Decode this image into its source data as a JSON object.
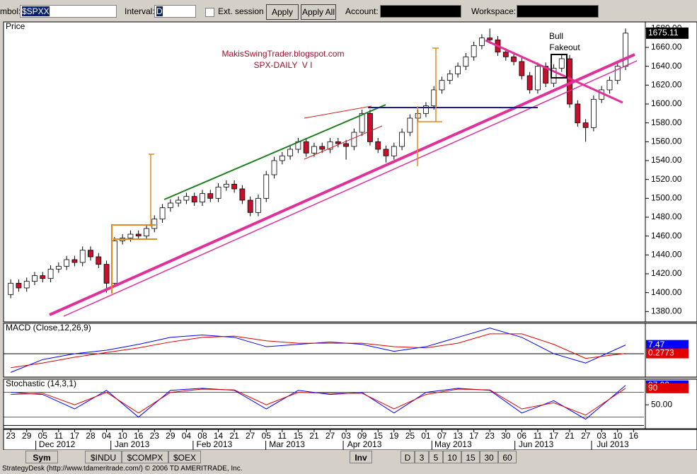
{
  "toolbar": {
    "symbol_label": "mbol:",
    "symbol": "$SPXX",
    "interval_label": "Interval:",
    "interval": "D",
    "ext_session": "Ext. session",
    "apply": "Apply",
    "apply_all": "Apply All",
    "account_label": "Account:",
    "workspace_label": "Workspace:"
  },
  "chart_data": [
    {
      "type": "candlestick",
      "panel_label": "Price",
      "annotations": [
        "MakisSwingTrader.blogspot.com",
        "SPX-DAILY  V I",
        "Bull",
        "Fakeout"
      ],
      "up_color": "#ffffff",
      "down_color": "#c8102e",
      "open": [
        1398,
        1410,
        1405,
        1412,
        1418,
        1415,
        1425,
        1428,
        1435,
        1432,
        1445,
        1438,
        1430,
        1410,
        1455,
        1458,
        1462,
        1460,
        1468,
        1478,
        1490,
        1495,
        1498,
        1502,
        1496,
        1505,
        1500,
        1512,
        1515,
        1510,
        1498,
        1485,
        1500,
        1525,
        1540,
        1545,
        1552,
        1560,
        1548,
        1555,
        1552,
        1560,
        1558,
        1555,
        1570,
        1590,
        1560,
        1552,
        1545,
        1555,
        1570,
        1585,
        1590,
        1598,
        1615,
        1625,
        1632,
        1640,
        1650,
        1662,
        1670,
        1668,
        1655,
        1650,
        1645,
        1630,
        1615,
        1640,
        1622,
        1638,
        1648,
        1600,
        1580,
        1575,
        1605,
        1615,
        1625,
        1640
      ],
      "high": [
        1414,
        1414,
        1416,
        1422,
        1422,
        1429,
        1432,
        1439,
        1439,
        1449,
        1449,
        1442,
        1434,
        1459,
        1462,
        1466,
        1466,
        1472,
        1482,
        1494,
        1499,
        1502,
        1506,
        1506,
        1509,
        1509,
        1516,
        1519,
        1519,
        1514,
        1502,
        1504,
        1529,
        1544,
        1549,
        1556,
        1564,
        1564,
        1559,
        1559,
        1564,
        1564,
        1562,
        1574,
        1594,
        1594,
        1564,
        1556,
        1559,
        1574,
        1589,
        1594,
        1602,
        1619,
        1629,
        1636,
        1644,
        1654,
        1666,
        1674,
        1680,
        1672,
        1659,
        1654,
        1649,
        1634,
        1644,
        1644,
        1642,
        1652,
        1652,
        1604,
        1584,
        1609,
        1619,
        1629,
        1644,
        1680
      ],
      "low": [
        1394,
        1401,
        1401,
        1408,
        1411,
        1411,
        1421,
        1424,
        1428,
        1428,
        1434,
        1426,
        1400,
        1406,
        1451,
        1454,
        1456,
        1456,
        1464,
        1474,
        1486,
        1491,
        1494,
        1492,
        1492,
        1496,
        1496,
        1508,
        1506,
        1494,
        1481,
        1481,
        1496,
        1521,
        1536,
        1541,
        1548,
        1544,
        1544,
        1548,
        1548,
        1554,
        1541,
        1551,
        1566,
        1556,
        1548,
        1538,
        1541,
        1551,
        1566,
        1581,
        1586,
        1594,
        1611,
        1621,
        1628,
        1636,
        1646,
        1658,
        1664,
        1651,
        1646,
        1641,
        1626,
        1611,
        1611,
        1618,
        1618,
        1634,
        1596,
        1576,
        1560,
        1571,
        1601,
        1611,
        1621,
        1636
      ],
      "close": [
        1410,
        1405,
        1412,
        1418,
        1415,
        1425,
        1428,
        1435,
        1432,
        1445,
        1438,
        1430,
        1410,
        1455,
        1458,
        1462,
        1460,
        1468,
        1478,
        1490,
        1495,
        1498,
        1502,
        1496,
        1505,
        1500,
        1512,
        1515,
        1510,
        1498,
        1485,
        1500,
        1525,
        1540,
        1545,
        1552,
        1560,
        1548,
        1555,
        1552,
        1560,
        1558,
        1555,
        1570,
        1590,
        1560,
        1552,
        1545,
        1555,
        1570,
        1585,
        1590,
        1598,
        1615,
        1625,
        1632,
        1640,
        1650,
        1662,
        1670,
        1668,
        1655,
        1650,
        1645,
        1630,
        1615,
        1640,
        1622,
        1638,
        1648,
        1600,
        1580,
        1575,
        1605,
        1615,
        1625,
        1640,
        1675.11
      ],
      "xlim": [
        -0.9,
        79.3
      ],
      "ylim": [
        1369,
        1687
      ],
      "yticks": [
        {
          "value": 1380,
          "label": "1380.00"
        },
        {
          "value": 1400,
          "label": "1400.00"
        },
        {
          "value": 1420,
          "label": "1420.00"
        },
        {
          "value": 1440,
          "label": "1440.00"
        },
        {
          "value": 1460,
          "label": "1460.00"
        },
        {
          "value": 1480,
          "label": "1480.00"
        },
        {
          "value": 1500,
          "label": "1500.00"
        },
        {
          "value": 1520,
          "label": "1520.00"
        },
        {
          "value": 1540,
          "label": "1540.00"
        },
        {
          "value": 1560,
          "label": "1560.00"
        },
        {
          "value": 1580,
          "label": "1580.00"
        },
        {
          "value": 1600,
          "label": "1600.00"
        },
        {
          "value": 1620,
          "label": "1620.00"
        },
        {
          "value": 1640,
          "label": "1640.00"
        },
        {
          "value": 1660,
          "label": "1660.00"
        },
        {
          "value": 1680,
          "label": "1680.00"
        }
      ],
      "xticks": [
        {
          "value": 0,
          "label": "23"
        },
        {
          "value": 2,
          "label": "29"
        },
        {
          "value": 4,
          "label": "05"
        },
        {
          "value": 6,
          "label": "11"
        },
        {
          "value": 8,
          "label": "17"
        },
        {
          "value": 10,
          "label": "28"
        },
        {
          "value": 12,
          "label": "04"
        },
        {
          "value": 14,
          "label": "10"
        },
        {
          "value": 16,
          "label": "16"
        },
        {
          "value": 18,
          "label": "23"
        },
        {
          "value": 20,
          "label": "29"
        },
        {
          "value": 22,
          "label": "04"
        },
        {
          "value": 24,
          "label": "08"
        },
        {
          "value": 26,
          "label": "14"
        },
        {
          "value": 28,
          "label": "21"
        },
        {
          "value": 30,
          "label": "27"
        },
        {
          "value": 32,
          "label": "05"
        },
        {
          "value": 34,
          "label": "11"
        },
        {
          "value": 36,
          "label": "15"
        },
        {
          "value": 38,
          "label": "21"
        },
        {
          "value": 40,
          "label": "27"
        },
        {
          "value": 42,
          "label": "03"
        },
        {
          "value": 44,
          "label": "09"
        },
        {
          "value": 46,
          "label": "15"
        },
        {
          "value": 48,
          "label": "19"
        },
        {
          "value": 50,
          "label": "25"
        },
        {
          "value": 52,
          "label": "01"
        },
        {
          "value": 54,
          "label": "07"
        },
        {
          "value": 56,
          "label": "13"
        },
        {
          "value": 58,
          "label": "17"
        },
        {
          "value": 60,
          "label": "23"
        },
        {
          "value": 62,
          "label": "30"
        },
        {
          "value": 64,
          "label": "06"
        },
        {
          "value": 66,
          "label": "11"
        },
        {
          "value": 68,
          "label": "17"
        },
        {
          "value": 70,
          "label": "21"
        },
        {
          "value": 72,
          "label": "27"
        },
        {
          "value": 74,
          "label": "03"
        },
        {
          "value": 76,
          "label": "10"
        },
        {
          "value": 78,
          "label": "16"
        }
      ],
      "month_labels": [
        {
          "value": 5.8,
          "label": "Dec 2012"
        },
        {
          "value": 15.2,
          "label": "Jan 2013"
        },
        {
          "value": 25.5,
          "label": "Feb 2013"
        },
        {
          "value": 34.6,
          "label": "Mar 2013"
        },
        {
          "value": 44.3,
          "label": "Apr 2013"
        },
        {
          "value": 55.4,
          "label": "May 2013"
        },
        {
          "value": 65.8,
          "label": "Jun 2013"
        },
        {
          "value": 75.4,
          "label": "Jul 2013"
        }
      ]
    },
    {
      "type": "line",
      "panel_label": "MACD (Close,12,26,9)",
      "xlim": [
        -0.9,
        79.3
      ],
      "ylim": [
        -20,
        26
      ],
      "x": [
        0,
        4,
        8,
        12,
        16,
        20,
        24,
        28,
        32,
        36,
        40,
        44,
        48,
        52,
        56,
        60,
        64,
        68,
        72,
        77
      ],
      "series": [
        {
          "color": "#0000ff",
          "values": [
            -16,
            -5,
            0,
            3,
            8,
            14,
            16,
            14,
            6,
            8,
            10,
            8,
            2,
            6,
            14,
            22,
            14,
            0,
            -8,
            7.47
          ]
        },
        {
          "color": "#e00000",
          "values": [
            -12,
            -8,
            -3,
            1,
            5,
            10,
            14,
            15,
            11,
            9,
            9,
            9,
            6,
            5,
            9,
            17,
            17,
            8,
            -4,
            0.2773
          ]
        }
      ]
    },
    {
      "type": "line",
      "panel_label": "Stochastic (14,3,1)",
      "xlim": [
        -0.9,
        79.3
      ],
      "ylim": [
        -8,
        112
      ],
      "yticks": [
        {
          "value": 50,
          "label": "50.00"
        }
      ],
      "levels": [
        80,
        20
      ],
      "x": [
        0,
        4,
        8,
        12,
        16,
        20,
        24,
        28,
        32,
        36,
        40,
        44,
        48,
        52,
        56,
        60,
        64,
        68,
        72,
        77
      ],
      "series": [
        {
          "color": "#0000ff",
          "values": [
            80,
            75,
            40,
            85,
            20,
            85,
            90,
            85,
            40,
            85,
            75,
            80,
            30,
            80,
            90,
            85,
            30,
            60,
            15,
            97.09
          ]
        },
        {
          "color": "#e00000",
          "values": [
            75,
            78,
            50,
            80,
            30,
            80,
            88,
            86,
            50,
            80,
            78,
            78,
            40,
            75,
            88,
            86,
            40,
            55,
            25,
            90
          ]
        }
      ]
    }
  ],
  "tabs": [
    "Sym",
    "$INDU",
    "$COMPX",
    "$OEX",
    "Inv",
    "D",
    "3",
    "5",
    "10",
    "15",
    "30",
    "60"
  ],
  "status": "StrategyDesk (http://www.tdameritrade.com/) © 2006 TD AMERITRADE, Inc."
}
